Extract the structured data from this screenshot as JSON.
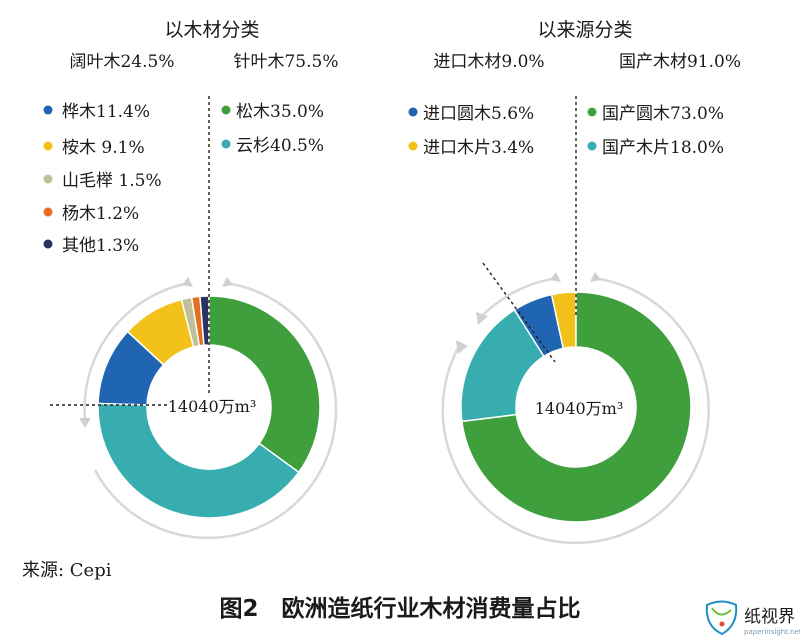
{
  "chart_data": [
    {
      "type": "pie",
      "variant": "donut",
      "title": "以木材分类",
      "center_label": "14040万m³",
      "groups": [
        {
          "label": "阔叶木24.5%",
          "value": 24.5
        },
        {
          "label": "针叶木75.5%",
          "value": 75.5
        }
      ],
      "slices": [
        {
          "label": "桦木11.4%",
          "value": 11.4,
          "group": "阔叶木",
          "color": "#2065b1"
        },
        {
          "label": "桉木 9.1%",
          "value": 9.1,
          "group": "阔叶木",
          "color": "#f3c21a"
        },
        {
          "label": "山毛榉 1.5%",
          "value": 1.5,
          "group": "阔叶木",
          "color": "#bfbf9a"
        },
        {
          "label": "杨木1.2%",
          "value": 1.2,
          "group": "阔叶木",
          "color": "#e2701e"
        },
        {
          "label": "其他1.3%",
          "value": 1.3,
          "group": "阔叶木",
          "color": "#2b3261"
        },
        {
          "label": "松木35.0%",
          "value": 35.0,
          "group": "针叶木",
          "color": "#3f9f3c"
        },
        {
          "label": "云杉40.5%",
          "value": 40.5,
          "group": "针叶木",
          "color": "#38adb0"
        }
      ]
    },
    {
      "type": "pie",
      "variant": "donut",
      "title": "以来源分类",
      "center_label": "14040万m³",
      "groups": [
        {
          "label": "进口木材9.0%",
          "value": 9.0
        },
        {
          "label": "国产木材91.0%",
          "value": 91.0
        }
      ],
      "slices": [
        {
          "label": "进口圆木5.6%",
          "value": 5.6,
          "group": "进口木材",
          "color": "#2065b1"
        },
        {
          "label": "进口木片3.4%",
          "value": 3.4,
          "group": "进口木材",
          "color": "#f3c21a"
        },
        {
          "label": "国产圆木73.0%",
          "value": 73.0,
          "group": "国产木材",
          "color": "#3f9f3c"
        },
        {
          "label": "国产木片18.0%",
          "value": 18.0,
          "group": "国产木材",
          "color": "#38adb0"
        }
      ]
    }
  ],
  "source": "来源: Cepi",
  "figure_caption": "图2　欧洲造纸行业木材消费量占比",
  "watermark": {
    "text": "纸视界",
    "url": "paperinsight.net"
  }
}
